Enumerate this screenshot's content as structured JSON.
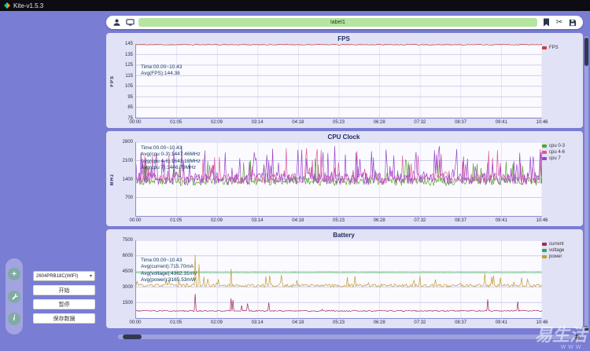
{
  "window": {
    "title": "Kite-v1.5.3"
  },
  "toolbar": {
    "label_input": "label1",
    "icon_names": [
      "user-icon",
      "device-icon",
      "bookmark-icon",
      "cut-icon",
      "save-icon"
    ]
  },
  "sidebar": {
    "fab_plus": "+",
    "fab_info": "i",
    "device_select": {
      "value": "2604PRB18C(WIFI)",
      "caret": "▾"
    },
    "start_button": "开始",
    "pause_button": "暂停",
    "save_button": "保存数据"
  },
  "watermark": {
    "title": "易生活",
    "subtitle": "WWW."
  },
  "colors": {
    "background": "#797dd3",
    "panel": "#e1e2f6",
    "label_input_green": "#b5e5a1",
    "fps_red": "#cc3b3b",
    "cpu03_green": "#58a32f",
    "cpu46_pink": "#e0559e",
    "cpu7_purple": "#9b44c9",
    "current_magenta": "#a2285e",
    "voltage_green": "#2ea84f",
    "power_gold": "#c59a2e"
  },
  "chart_data": [
    {
      "type": "line",
      "title": "FPS",
      "ylabel": "FPS",
      "ylim": [
        75,
        145
      ],
      "yticks": [
        75,
        85,
        95,
        105,
        115,
        125,
        135,
        145
      ],
      "x_labels": [
        "00:00",
        "01:05",
        "02:09",
        "03:14",
        "04:18",
        "05:23",
        "06:28",
        "07:32",
        "08:37",
        "09:41",
        "10:46"
      ],
      "tooltip": {
        "top": 26,
        "lines": [
          "Time:00.00~10.43",
          "Avg(FPS):144.38"
        ]
      },
      "series": [
        {
          "name": "FPS",
          "color": "#cc3b3b",
          "base": 144.3,
          "noise": 0.35,
          "points": 220,
          "seed": 11,
          "min": 139,
          "max": 145
        }
      ]
    },
    {
      "type": "line",
      "title": "CPU Clock",
      "ylabel": "MHz",
      "ylim": [
        0,
        2800
      ],
      "yticks": [
        700,
        1400,
        2100,
        2800
      ],
      "x_labels": [
        "00:00",
        "01:05",
        "02:09",
        "03:14",
        "04:18",
        "05:23",
        "06:28",
        "07:32",
        "08:37",
        "09:41",
        "10:46"
      ],
      "tooltip": {
        "top": 4,
        "lines": [
          "Time:00.00~10.43",
          "Avg(cpu 0-3):1447.46MHz",
          "Avg(cpu 4-6):1643.18MHz",
          "Avg(cpu 7):1446.79MHz"
        ]
      },
      "series": [
        {
          "name": "cpu 0-3",
          "color": "#58a32f",
          "base": 1310,
          "noise": 160,
          "spike_chance": 0.1,
          "spike_amp": 900,
          "min": 780,
          "max": 2450,
          "points": 420,
          "seed": 21
        },
        {
          "name": "cpu 4-6",
          "color": "#e0559e",
          "base": 1430,
          "noise": 200,
          "spike_chance": 0.16,
          "spike_amp": 1100,
          "min": 820,
          "max": 2600,
          "points": 420,
          "seed": 22
        },
        {
          "name": "cpu 7",
          "color": "#9b44c9",
          "base": 1420,
          "noise": 240,
          "spike_chance": 0.22,
          "spike_amp": 1150,
          "min": 800,
          "max": 2650,
          "points": 420,
          "seed": 23
        }
      ]
    },
    {
      "type": "line",
      "title": "Battery",
      "ylabel": "",
      "ylim": [
        0,
        7500
      ],
      "yticks": [
        1500,
        3000,
        4500,
        6000,
        7500
      ],
      "x_labels": [
        "00:00",
        "01:05",
        "02:09",
        "03:14",
        "04:18",
        "05:23",
        "06:28",
        "07:32",
        "08:37",
        "09:41",
        "10:46"
      ],
      "tooltip": {
        "top": 22,
        "lines": [
          "Time:00.00~10.43",
          "Avg(current):715.70mA",
          "Avg(voltage):4362.31mV",
          "Avg(power):3165.53mW"
        ]
      },
      "series": [
        {
          "name": "current",
          "color": "#a2285e",
          "base": 690,
          "noise": 60,
          "spike_chance": 0.02,
          "spike_amp": 1100,
          "min": 480,
          "max": 2400,
          "points": 420,
          "seed": 31,
          "events": [
            {
              "t": 0.145,
              "v": 2350
            },
            {
              "t": 0.235,
              "v": 1900
            }
          ]
        },
        {
          "name": "voltage",
          "color": "#2ea84f",
          "base": 4385,
          "noise": 14,
          "points": 420,
          "seed": 32
        },
        {
          "name": "power",
          "color": "#c59a2e",
          "base": 3130,
          "noise": 150,
          "spike_chance": 0.06,
          "spike_amp": 900,
          "min": 2650,
          "max": 6200,
          "points": 420,
          "seed": 33,
          "events": [
            {
              "t": 0.145,
              "v": 6100
            },
            {
              "t": 0.155,
              "v": 5200
            },
            {
              "t": 0.235,
              "v": 4750
            },
            {
              "t": 0.33,
              "v": 4100
            },
            {
              "t": 0.52,
              "v": 3950
            },
            {
              "t": 0.7,
              "v": 4050
            },
            {
              "t": 0.86,
              "v": 4300
            },
            {
              "t": 0.95,
              "v": 3900
            }
          ]
        }
      ]
    }
  ]
}
